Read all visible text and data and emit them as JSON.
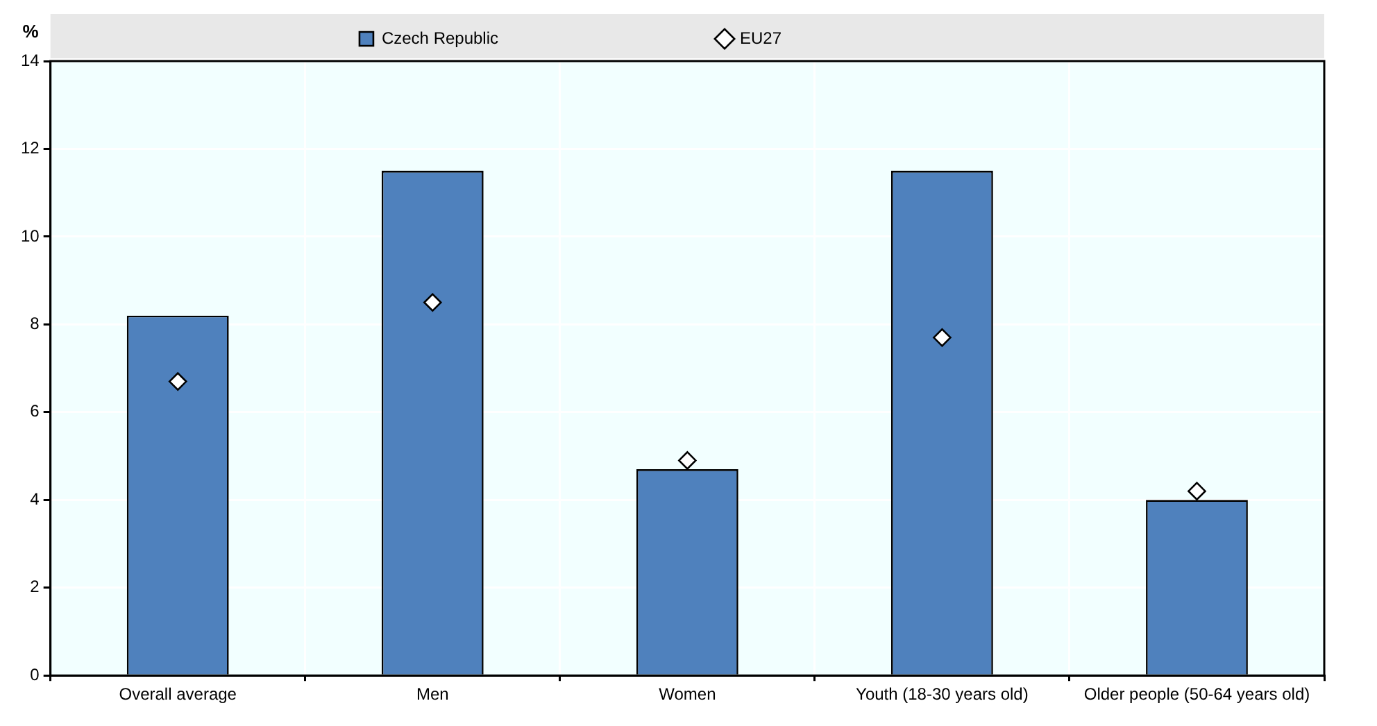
{
  "chart_data": {
    "type": "bar",
    "ylabel": "%",
    "categories": [
      "Overall average",
      "Men",
      "Women",
      "Youth (18-30 years old)",
      "Older people (50-64 years old)"
    ],
    "series": [
      {
        "name": "Czech Republic",
        "color": "#4f81bd",
        "values": [
          8.2,
          11.5,
          4.7,
          11.5,
          4.0
        ]
      },
      {
        "name": "EU27",
        "type": "scatter",
        "color": "#ffffff",
        "values": [
          6.7,
          8.5,
          4.9,
          7.7,
          4.2
        ]
      }
    ],
    "ylim": [
      0,
      14
    ],
    "yticks": [
      0,
      2,
      4,
      6,
      8,
      10,
      12,
      14
    ],
    "grid": true,
    "legend": "top",
    "marker": "diamond"
  }
}
